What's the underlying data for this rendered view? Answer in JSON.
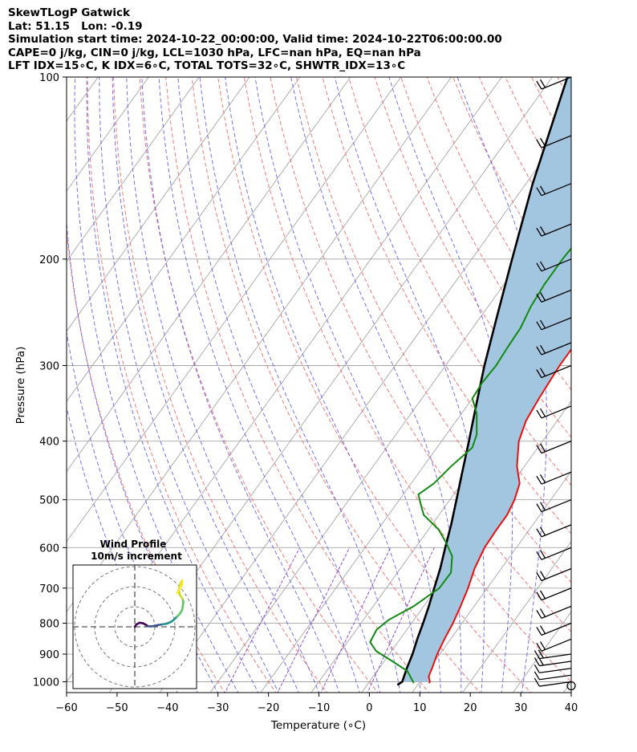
{
  "header": {
    "line1": "SkewTLogP Gatwick",
    "line2": "Lat: 51.15   Lon: -0.19",
    "line3": "Simulation start time: 2024-10-22_00:00:00, Valid time: 2024-10-22T06:00:00.00",
    "line4": "CAPE=0 j/kg, CIN=0 j/kg, LCL=1030 hPa, LFC=nan hPa, EQ=nan hPa",
    "line5": "LFT IDX=15∘C, K IDX=6∘C, TOTAL TOTS=32∘C, SHWTR_IDX=13∘C"
  },
  "chart_data": {
    "type": "line",
    "xlabel": "Temperature (∘C)",
    "ylabel": "Pressure (hPa)",
    "xlim": [
      -60,
      40
    ],
    "ylim": [
      1050,
      100
    ],
    "log_y": true,
    "x_ticks": [
      "−60",
      "−50",
      "−40",
      "−30",
      "−20",
      "−10",
      "0",
      "10",
      "20",
      "30",
      "40"
    ],
    "x_tick_values": [
      -60,
      -50,
      -40,
      -30,
      -20,
      -10,
      0,
      10,
      20,
      30,
      40
    ],
    "y_ticks": [
      "100",
      "200",
      "300",
      "400",
      "500",
      "600",
      "700",
      "800",
      "900",
      "1000"
    ],
    "y_tick_values": [
      100,
      200,
      300,
      400,
      500,
      600,
      700,
      800,
      900,
      1000
    ],
    "grid": true,
    "colors": {
      "temperature": "#e8110f",
      "dewpoint": "#108a10",
      "parcel": "#000000",
      "fill": "#a2c6e0",
      "dry_adiabat": "#f26a6a",
      "moist_adiabat": "#5a5af0",
      "mixing_ratio": "#8a3fc8",
      "isotherm": "#a6a6a6"
    },
    "series": [],
    "temperature_profile": [
      [
        1005,
        12
      ],
      [
        1000,
        12
      ],
      [
        980,
        11
      ],
      [
        950,
        10.5
      ],
      [
        900,
        9.5
      ],
      [
        850,
        8.8
      ],
      [
        800,
        8.2
      ],
      [
        750,
        7.3
      ],
      [
        700,
        6.2
      ],
      [
        650,
        4.7
      ],
      [
        600,
        3.7
      ],
      [
        560,
        3.5
      ],
      [
        530,
        3.5
      ],
      [
        500,
        2.8
      ],
      [
        470,
        1.5
      ],
      [
        440,
        -1.5
      ],
      [
        400,
        -4.7
      ],
      [
        370,
        -6.2
      ],
      [
        340,
        -6.8
      ],
      [
        300,
        -7.4
      ],
      [
        270,
        -7.4
      ],
      [
        240,
        -5.8
      ],
      [
        210,
        -3.5
      ],
      [
        180,
        -1.2
      ],
      [
        160,
        0.8
      ],
      [
        140,
        3.2
      ],
      [
        120,
        5.4
      ],
      [
        100,
        8.3
      ]
    ],
    "dewpoint_profile": [
      [
        1005,
        9
      ],
      [
        990,
        8
      ],
      [
        960,
        6
      ],
      [
        920,
        1
      ],
      [
        890,
        -3
      ],
      [
        860,
        -5.5
      ],
      [
        820,
        -6
      ],
      [
        790,
        -5
      ],
      [
        750,
        -2
      ],
      [
        700,
        0.5
      ],
      [
        660,
        0.6
      ],
      [
        620,
        -1.5
      ],
      [
        590,
        -4.5
      ],
      [
        560,
        -8
      ],
      [
        530,
        -13
      ],
      [
        510,
        -15
      ],
      [
        490,
        -17
      ],
      [
        470,
        -15.5
      ],
      [
        440,
        -14.5
      ],
      [
        410,
        -13
      ],
      [
        390,
        -14
      ],
      [
        360,
        -17
      ],
      [
        340,
        -20
      ],
      [
        320,
        -20.3
      ],
      [
        300,
        -20
      ],
      [
        280,
        -20.3
      ],
      [
        260,
        -20.5
      ],
      [
        240,
        -21.5
      ],
      [
        220,
        -22
      ],
      [
        200,
        -22
      ],
      [
        180,
        -21.5
      ],
      [
        160,
        -20.5
      ],
      [
        140,
        -19
      ],
      [
        120,
        -16
      ],
      [
        110,
        -14.5
      ],
      [
        100,
        -13
      ]
    ],
    "parcel_profile": [
      [
        1012,
        6
      ],
      [
        1000,
        6.5
      ],
      [
        950,
        5.5
      ],
      [
        900,
        4.6
      ],
      [
        850,
        3.4
      ],
      [
        800,
        2.3
      ],
      [
        750,
        1
      ],
      [
        700,
        -0.5
      ],
      [
        650,
        -2.1
      ],
      [
        600,
        -4.1
      ],
      [
        550,
        -6.2
      ],
      [
        500,
        -8.7
      ],
      [
        450,
        -11.5
      ],
      [
        400,
        -14.6
      ],
      [
        350,
        -18.2
      ],
      [
        300,
        -22.3
      ],
      [
        250,
        -26.7
      ],
      [
        200,
        -32
      ],
      [
        150,
        -38.7
      ],
      [
        100,
        -47
      ]
    ],
    "wind_barb_pressures": [
      1000,
      975,
      950,
      925,
      900,
      850,
      800,
      750,
      700,
      650,
      600,
      550,
      500,
      450,
      400,
      350,
      300,
      275,
      250,
      225,
      200,
      175,
      150,
      125,
      100
    ],
    "hodograph": {
      "title": "Wind Profile",
      "subtitle": "10m/s increment",
      "points": [
        [
          0,
          0
        ],
        [
          0.2,
          0.3
        ],
        [
          0.6,
          0.5
        ],
        [
          1.0,
          0.45
        ],
        [
          1.3,
          0.3
        ],
        [
          1.6,
          0.1
        ],
        [
          2.0,
          0.05
        ],
        [
          2.4,
          0.1
        ],
        [
          2.8,
          0.2
        ],
        [
          3.4,
          0.3
        ],
        [
          4.0,
          0.4
        ],
        [
          4.5,
          0.6
        ],
        [
          4.9,
          0.9
        ],
        [
          5.3,
          1.3
        ],
        [
          5.6,
          1.6
        ],
        [
          5.9,
          2.1
        ],
        [
          6.0,
          2.6
        ],
        [
          6.05,
          3.1
        ],
        [
          5.95,
          3.5
        ],
        [
          5.6,
          4.0
        ],
        [
          5.5,
          4.7
        ],
        [
          5.7,
          5.4
        ],
        [
          5.9,
          5.8
        ],
        [
          5.85,
          5.2
        ],
        [
          5.5,
          4.6
        ],
        [
          5.3,
          4.2
        ]
      ]
    }
  }
}
